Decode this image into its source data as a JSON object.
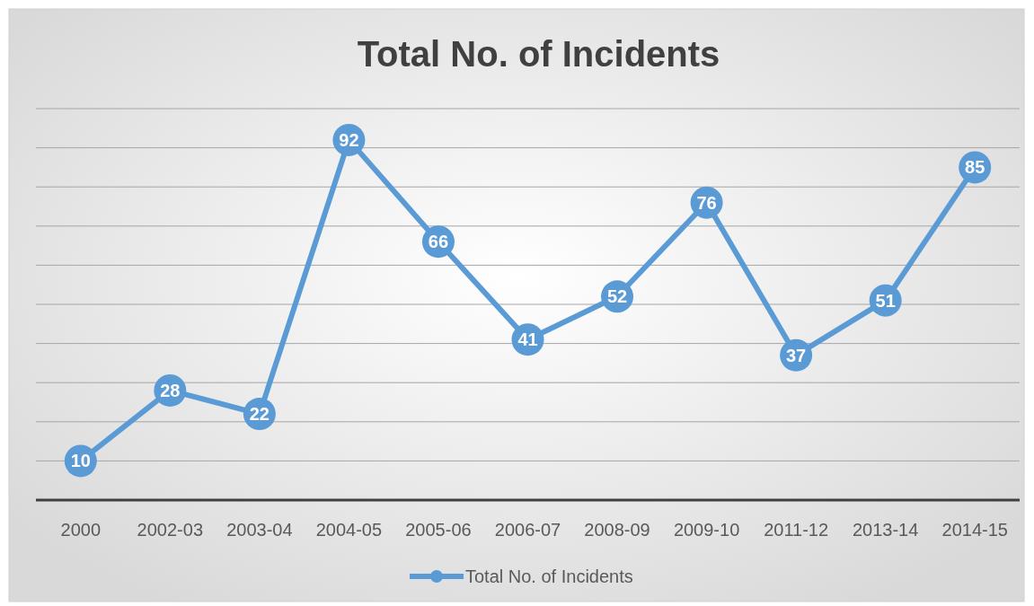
{
  "chart_data": {
    "type": "line",
    "title": "Total No. of Incidents",
    "categories": [
      "2000",
      "2002-03",
      "2003-04",
      "2004-05",
      "2005-06",
      "2006-07",
      "2008-09",
      "2009-10",
      "2011-12",
      "2013-14",
      "2014-15"
    ],
    "series": [
      {
        "name": "Total No. of Incidents",
        "color": "#5b9bd5",
        "values": [
          10,
          28,
          22,
          92,
          66,
          41,
          52,
          76,
          37,
          51,
          85
        ]
      }
    ],
    "ylim": [
      0,
      100
    ],
    "yticks": [
      {
        "value": 10,
        "label": null
      },
      {
        "value": 20,
        "label": null
      },
      {
        "value": 30,
        "label": null
      },
      {
        "value": 40,
        "label": null
      },
      {
        "value": 50,
        "label": null
      },
      {
        "value": 60,
        "label": null
      },
      {
        "value": 70,
        "label": null
      },
      {
        "value": 80,
        "label": null
      },
      {
        "value": 90,
        "label": null
      },
      {
        "value": 100,
        "label": null
      }
    ],
    "grid": "y",
    "legend": "bottom",
    "marker": "circle",
    "line_style": "solid",
    "data_labels": true
  }
}
